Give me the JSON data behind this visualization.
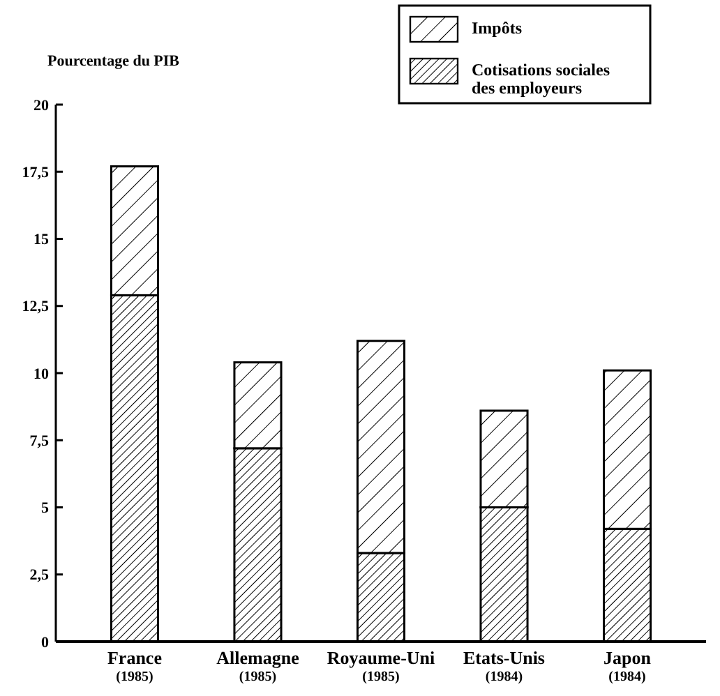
{
  "chart_data": {
    "type": "bar",
    "stacked": true,
    "ylabel": "Pourcentage du PIB",
    "categories": [
      "France\n(1985)",
      "Allemagne\n(1985)",
      "Royaume-Uni\n(1985)",
      "Etats-Unis\n(1984)",
      "Japon\n(1984)"
    ],
    "series": [
      {
        "name": "Cotisations sociales\ndes employeurs",
        "color": "#000000",
        "values": [
          12.9,
          7.2,
          3.3,
          5.0,
          4.2
        ]
      },
      {
        "name": "Impôts",
        "color": "#000000",
        "values": [
          4.8,
          3.2,
          7.9,
          3.6,
          5.9
        ]
      }
    ],
    "ylim": [
      0,
      20
    ],
    "yticks": [
      0,
      {
        "value": 2.5,
        "label": "2,5"
      },
      5,
      {
        "value": 7.5,
        "label": "7,5"
      },
      10,
      {
        "value": 12.5,
        "label": "12,5"
      },
      15,
      {
        "value": 17.5,
        "label": "17,5"
      },
      20
    ],
    "grid": false,
    "legend": "top right"
  }
}
